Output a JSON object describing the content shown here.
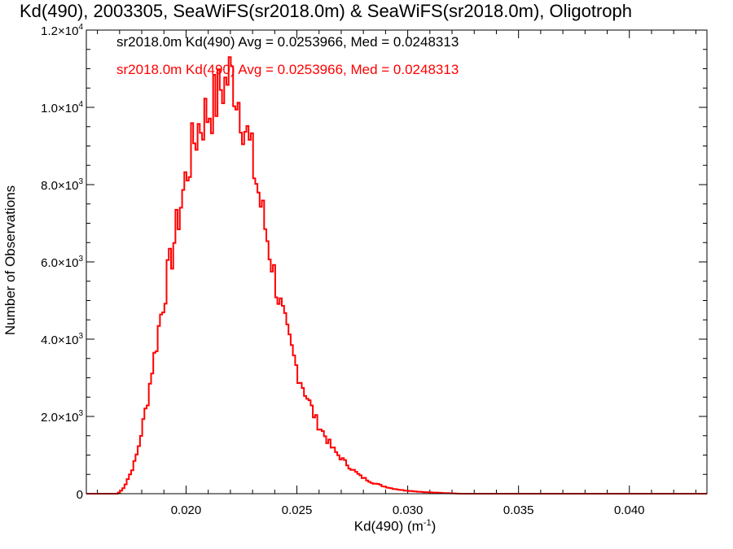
{
  "chart_data": {
    "type": "bar",
    "title": "Kd(490), 2003305, SeaWiFS(sr2018.0m) & SeaWiFS(sr2018.0m), Oligotroph",
    "xlabel_base": "Kd(490) (m",
    "xlabel_sup": "-1",
    "xlabel_tail": ")",
    "ylabel": "Number of Observations",
    "xlim": [
      0.0155,
      0.0435
    ],
    "ylim": [
      0,
      12000
    ],
    "xticks": [
      {
        "v": 0.02,
        "label": "0.020"
      },
      {
        "v": 0.025,
        "label": "0.025"
      },
      {
        "v": 0.03,
        "label": "0.030"
      },
      {
        "v": 0.035,
        "label": "0.035"
      },
      {
        "v": 0.04,
        "label": "0.040"
      }
    ],
    "yticks": [
      {
        "v": 0,
        "m": "0",
        "e": ""
      },
      {
        "v": 2000,
        "m": "2.0×10",
        "e": "3"
      },
      {
        "v": 4000,
        "m": "4.0×10",
        "e": "3"
      },
      {
        "v": 6000,
        "m": "6.0×10",
        "e": "3"
      },
      {
        "v": 8000,
        "m": "8.0×10",
        "e": "3"
      },
      {
        "v": 10000,
        "m": "1.0×10",
        "e": "4"
      },
      {
        "v": 12000,
        "m": "1.2×10",
        "e": "4"
      }
    ],
    "series": [
      {
        "name": "sr2018.0m Kd(490) Avg = 0.0253966, Med = 0.0248313",
        "color": "#000000"
      },
      {
        "name": "sr2018.0m Kd(490) Avg = 0.0253966, Med = 0.0248313",
        "color": "#ff0000"
      }
    ],
    "histogram": {
      "x_start": 0.01552,
      "bin_width": 0.0001,
      "values": [
        0,
        0,
        0,
        0,
        0,
        0,
        0,
        0,
        0,
        0,
        0,
        0,
        0,
        0,
        30,
        80,
        150,
        250,
        380,
        500,
        650,
        800,
        1000,
        1250,
        1550,
        1850,
        2150,
        2450,
        2850,
        3250,
        3550,
        3900,
        4300,
        4650,
        4950,
        5300,
        5650,
        5900,
        6200,
        6550,
        6850,
        7200,
        7500,
        7800,
        8100,
        8400,
        8650,
        8900,
        9150,
        9300,
        9500,
        9600,
        9700,
        9800,
        9850,
        9950,
        10000,
        10150,
        10200,
        10350,
        10500,
        10550,
        10600,
        10750,
        10850,
        10800,
        10650,
        10400,
        10200,
        10000,
        9750,
        9500,
        9250,
        8950,
        8700,
        8400,
        8100,
        7800,
        7500,
        7200,
        6900,
        6600,
        6300,
        6000,
        5700,
        5400,
        5100,
        4850,
        4600,
        4350,
        4100,
        3900,
        3700,
        3500,
        3300,
        3100,
        2950,
        2800,
        2650,
        2500,
        2350,
        2200,
        2050,
        1900,
        1800,
        1700,
        1600,
        1500,
        1400,
        1300,
        1200,
        1130,
        1060,
        1000,
        940,
        880,
        820,
        760,
        700,
        650,
        600,
        550,
        500,
        450,
        420,
        390,
        360,
        330,
        300,
        280,
        260,
        240,
        220,
        200,
        185,
        170,
        155,
        140,
        130,
        120,
        110,
        100,
        90,
        85,
        80,
        75,
        70,
        65,
        60,
        55,
        50,
        45,
        40,
        38,
        35,
        32,
        30,
        28,
        25,
        22,
        20,
        18,
        15,
        12,
        10,
        8,
        5,
        3,
        0,
        0,
        0,
        0,
        0,
        0,
        0,
        0,
        0,
        0,
        0,
        0,
        0,
        0,
        0,
        0,
        0,
        0,
        0,
        0,
        0,
        0,
        0,
        0,
        0,
        0,
        0,
        0,
        0,
        0,
        0,
        0,
        0,
        0,
        0,
        0,
        0,
        0,
        0,
        0,
        0,
        0,
        0,
        0,
        0,
        0,
        0,
        0,
        0,
        0,
        0,
        0,
        0,
        0,
        0,
        0,
        0,
        0,
        0,
        0,
        0,
        0,
        0,
        0,
        0,
        0,
        0,
        0,
        0,
        0,
        0,
        0,
        0,
        0,
        0,
        0,
        0,
        0,
        0,
        0,
        0,
        0,
        0,
        0,
        0,
        0,
        0,
        0,
        0,
        0,
        0,
        0,
        0,
        0,
        0,
        0,
        0,
        0,
        0,
        0,
        0,
        0,
        0,
        0,
        0,
        0,
        0,
        0,
        0,
        0,
        0,
        0,
        0,
        0,
        0,
        0,
        0,
        0,
        0,
        0,
        0,
        0,
        0,
        0,
        0,
        0,
        0,
        0,
        0,
        0,
        0,
        0,
        0,
        0,
        0,
        0,
        0,
        0,
        0,
        0,
        0,
        0,
        0,
        0,
        0,
        0,
        0,
        0,
        0,
        0,
        0,
        0,
        0,
        0,
        0,
        0,
        0
      ]
    }
  }
}
